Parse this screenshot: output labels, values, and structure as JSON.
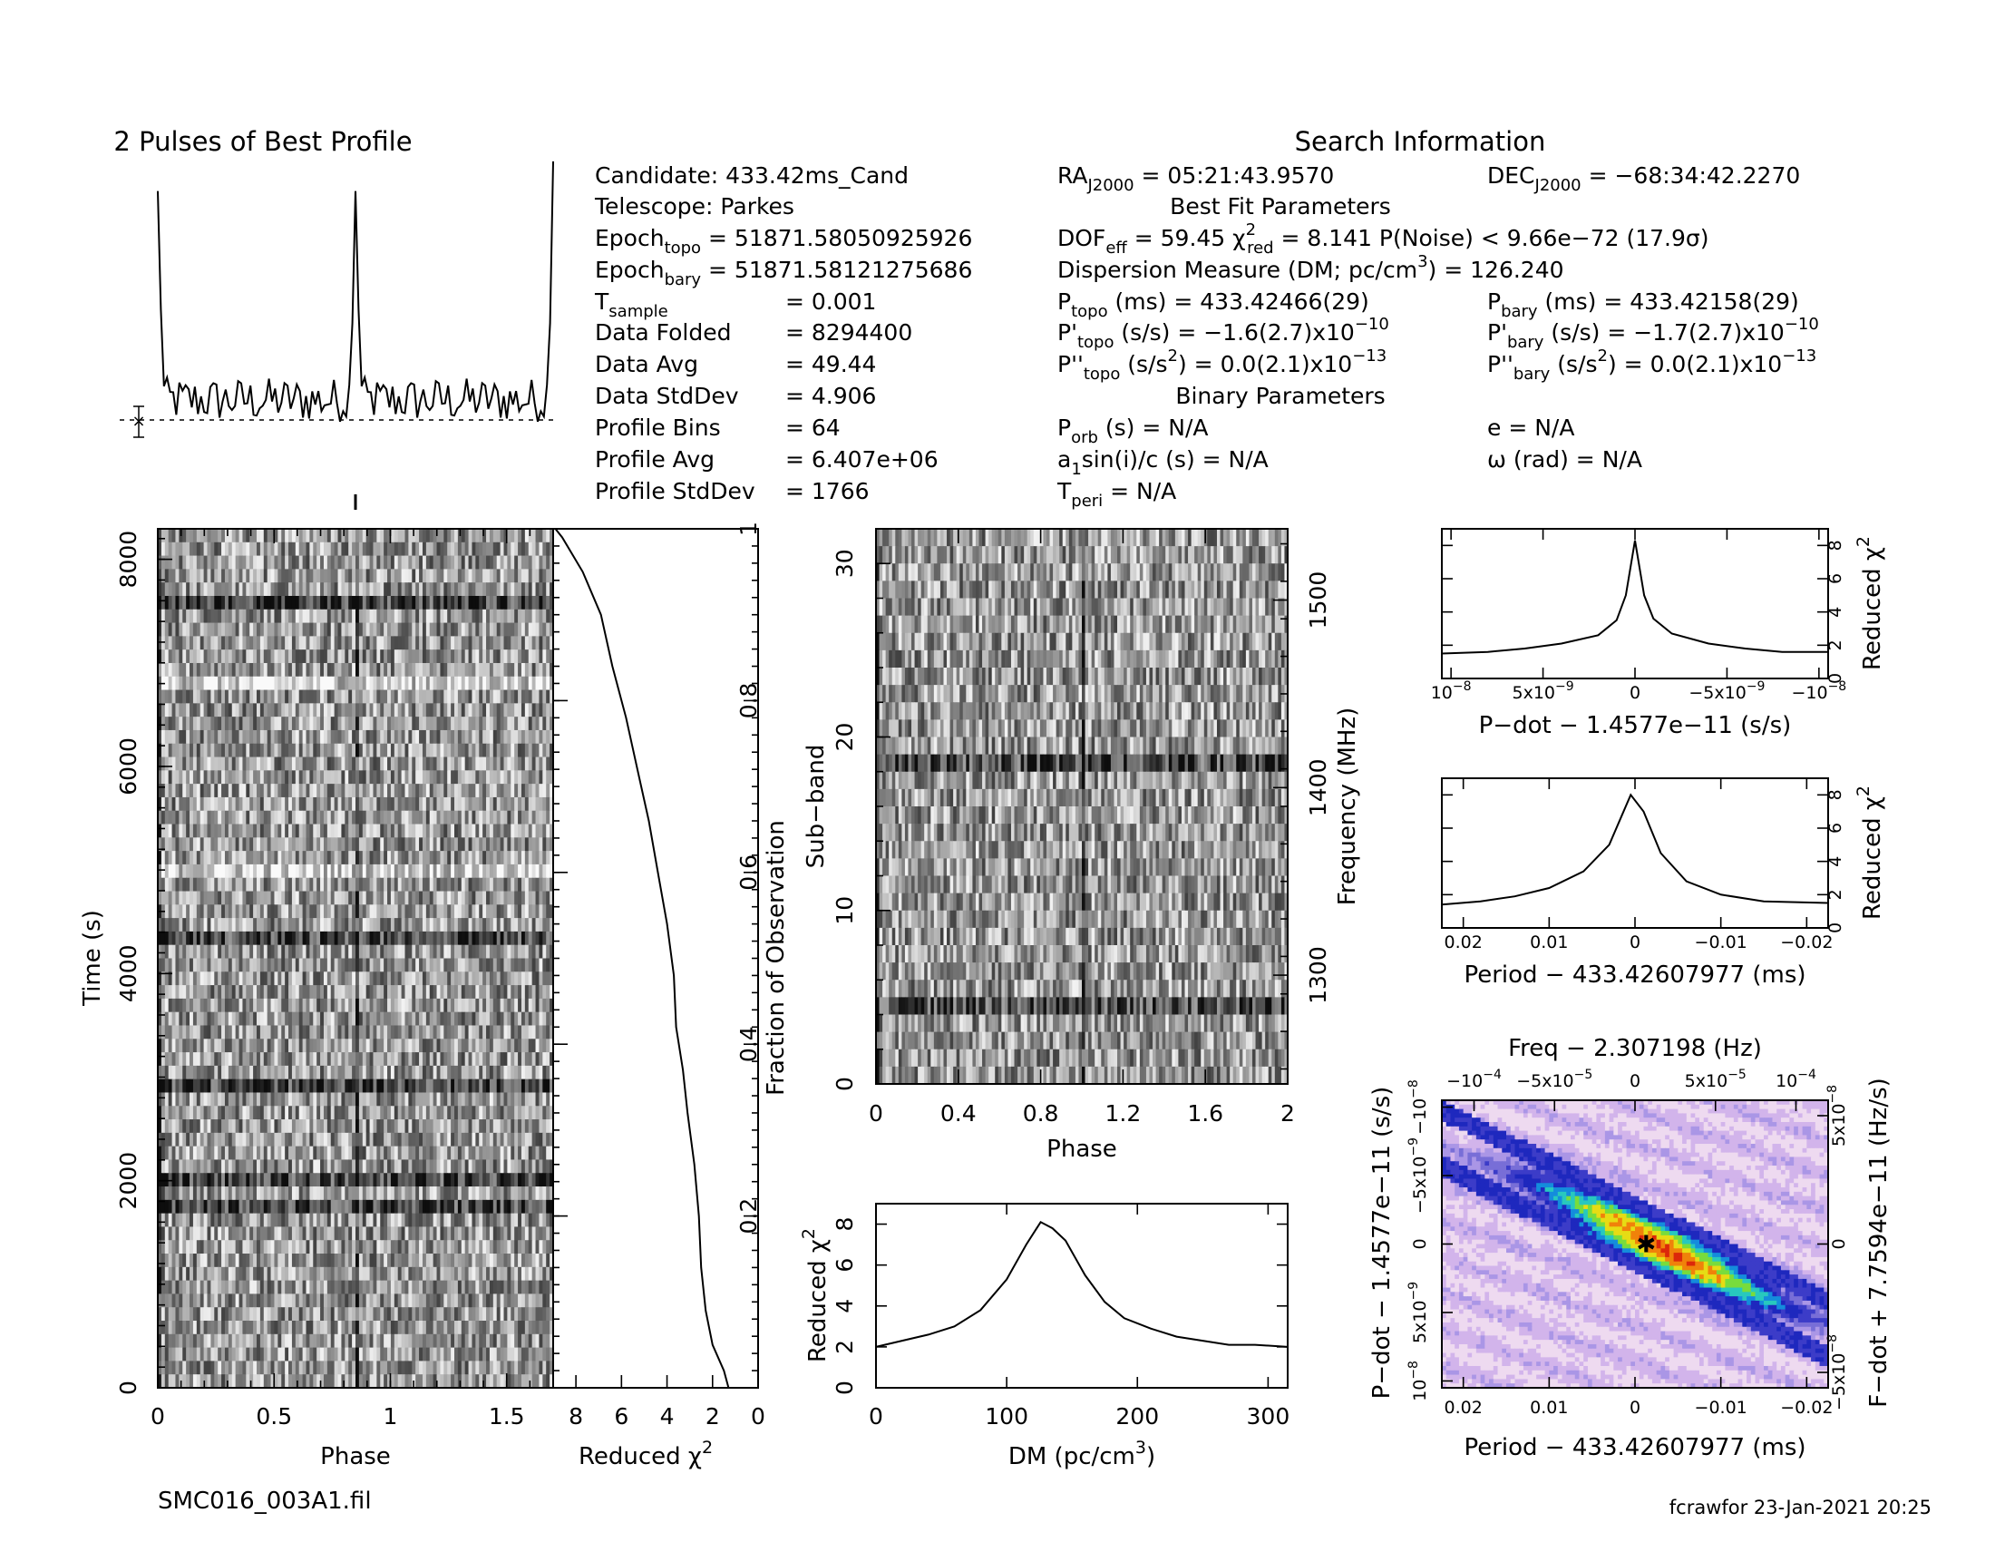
{
  "filename": "SMC016_003A1.fil",
  "footer": "fcrawfor 23-Jan-2021 20:25",
  "profile_title": "2 Pulses of Best Profile",
  "search_title": "Search Information",
  "best_fit_title": "Best Fit Parameters",
  "binary_title": "Binary Parameters",
  "info": {
    "candidate": "Candidate:  433.42ms_Cand",
    "telescope": "Telescope:  Parkes",
    "epoch_topo": "Epoch",
    "epoch_topo_sub": "topo",
    "epoch_topo_val": " = 51871.58050925926",
    "epoch_bary": "Epoch",
    "epoch_bary_sub": "bary",
    "epoch_bary_val": " = 51871.58121275686",
    "tsample": "T",
    "tsample_sub": "sample",
    "tsample_val": "=   0.001",
    "data_folded": "Data Folded",
    "data_folded_val": "=   8294400",
    "data_avg": "Data Avg",
    "data_avg_val": "=   49.44",
    "data_std": "Data StdDev",
    "data_std_val": "=   4.906",
    "profile_bins": "Profile Bins",
    "profile_bins_val": "=   64",
    "profile_avg": "Profile Avg",
    "profile_avg_val": "=   6.407e+06",
    "profile_std": "Profile StdDev",
    "profile_std_val": "=   1766",
    "ra": "RA",
    "ra_sub": "J2000",
    "ra_val": " = 05:21:43.9570",
    "dec": "DEC",
    "dec_sub": "J2000",
    "dec_val": " = −68:34:42.2270",
    "dof": "DOF",
    "dof_sub": "eff",
    "dof_val": " = 59.45  χ",
    "chi_sup": "2",
    "chi_sub": "red",
    "chi_val": " = 8.141  P(Noise) < 9.66e−72  (17.9σ)",
    "dm": "Dispersion Measure (DM; pc/cm",
    "dm_sup": "3",
    "dm_val": ") = 126.240",
    "ptopo": "P",
    "ptopo_sub": "topo",
    "ptopo_val": " (ms)  =  433.42466(29)",
    "pbary": "P",
    "pbary_sub": "bary",
    "pbary_val": " (ms)  =  433.42158(29)",
    "pdtopo": "P'",
    "pdtopo_sub": "topo",
    "pdtopo_val": " (s/s) = −1.6(2.7)x10",
    "pdtopo_exp": "−10",
    "pdbary": "P'",
    "pdbary_sub": "bary",
    "pdbary_val": " (s/s) = −1.7(2.7)x10",
    "pdbary_exp": "−10",
    "pddtopo": "P''",
    "pddtopo_sub": "topo",
    "pddtopo_val": " (s/s",
    "pddtopo_sup2": "2",
    "pddtopo_val2": ") = 0.0(2.1)x10",
    "pddtopo_exp": "−13",
    "pddbary": "P''",
    "pddbary_sub": "bary",
    "pddbary_val": " (s/s",
    "pddbary_sup2": "2",
    "pddbary_val2": ") = 0.0(2.1)x10",
    "pddbary_exp": "−13",
    "porb": "P",
    "porb_sub": "orb",
    "porb_val": " (s) = N/A",
    "e_val": "e = N/A",
    "asini": "a",
    "asini_sub": "1",
    "asini_val": "sin(i)/c (s) = N/A",
    "omega_val": "ω (rad) = N/A",
    "tperi": "T",
    "tperi_sub": "peri",
    "tperi_val": " = N/A"
  },
  "chart_data": [
    {
      "type": "line",
      "id": "pulse_profile",
      "title": "2 Pulses of Best Profile",
      "x": "phase 0–2 (2 pulses, 64 bins each)",
      "peak_phase": [
        0.0,
        1.0
      ],
      "baseline_level": 0.5
    },
    {
      "type": "heatmap",
      "id": "time_phase",
      "xlabel": "Phase",
      "ylabel": "Time (s)",
      "xlim": [
        0,
        2
      ],
      "ylim": [
        0,
        8294.4
      ],
      "xticks": [
        "0",
        "0.5",
        "1",
        "1.5"
      ],
      "yticks": [
        "0",
        "2000",
        "4000",
        "6000",
        "8000"
      ],
      "colormap": "gray"
    },
    {
      "type": "line",
      "id": "time_chi2",
      "xlabel": "Reduced χ",
      "xlabel_sup": "2",
      "ylabel": "Fraction of Observation",
      "xlim": [
        9,
        0
      ],
      "ylim": [
        0,
        1
      ],
      "xticks": [
        "8",
        "6",
        "4",
        "2",
        "0"
      ],
      "yticks": [
        "0.2",
        "0.4",
        "0.6",
        "0.8",
        "1"
      ],
      "points": [
        [
          1.3,
          0.0
        ],
        [
          1.5,
          0.02
        ],
        [
          2.0,
          0.05
        ],
        [
          2.3,
          0.09
        ],
        [
          2.5,
          0.14
        ],
        [
          2.6,
          0.2
        ],
        [
          2.8,
          0.26
        ],
        [
          3.1,
          0.32
        ],
        [
          3.3,
          0.37
        ],
        [
          3.6,
          0.42
        ],
        [
          3.7,
          0.48
        ],
        [
          4.0,
          0.54
        ],
        [
          4.4,
          0.6
        ],
        [
          4.8,
          0.66
        ],
        [
          5.3,
          0.72
        ],
        [
          5.8,
          0.78
        ],
        [
          6.4,
          0.84
        ],
        [
          6.9,
          0.9
        ],
        [
          7.7,
          0.95
        ],
        [
          8.6,
          0.99
        ],
        [
          8.9,
          1.0
        ]
      ]
    },
    {
      "type": "heatmap",
      "id": "subband_phase",
      "xlabel": "Phase",
      "ylabel": "Sub−band",
      "ylabel2": "Frequency (MHz)",
      "xlim": [
        0,
        2
      ],
      "ylim": [
        0,
        32
      ],
      "xticks": [
        "0",
        "0.4",
        "0.8",
        "1.2",
        "1.6",
        "2"
      ],
      "yticks": [
        "0",
        "10",
        "20",
        "30"
      ],
      "y2ticks": [
        "1300",
        "1400",
        "1500"
      ],
      "colormap": "gray"
    },
    {
      "type": "line",
      "id": "dm_chi2",
      "xlabel": "DM (pc/cm",
      "xlabel_sup": "3",
      "xlabel_end": ")",
      "ylabel": "Reduced χ",
      "ylabel_sup": "2",
      "xlim": [
        0,
        315
      ],
      "ylim": [
        0,
        9
      ],
      "xticks": [
        "0",
        "100",
        "200",
        "300"
      ],
      "yticks": [
        "0",
        "2",
        "4",
        "6",
        "8"
      ],
      "points": [
        [
          0,
          2.0
        ],
        [
          20,
          2.3
        ],
        [
          40,
          2.6
        ],
        [
          60,
          3.0
        ],
        [
          80,
          3.8
        ],
        [
          100,
          5.3
        ],
        [
          115,
          7.0
        ],
        [
          126,
          8.1
        ],
        [
          135,
          7.8
        ],
        [
          145,
          7.2
        ],
        [
          160,
          5.5
        ],
        [
          175,
          4.2
        ],
        [
          190,
          3.4
        ],
        [
          210,
          2.9
        ],
        [
          230,
          2.5
        ],
        [
          250,
          2.3
        ],
        [
          270,
          2.1
        ],
        [
          290,
          2.1
        ],
        [
          315,
          2.0
        ]
      ]
    },
    {
      "type": "line",
      "id": "pdot_chi2",
      "xlabel": "P−dot − 1.4577e−11 (s/s)",
      "ylabel": "Reduced χ",
      "ylabel_sup": "2",
      "xlim": [
        1.05e-08,
        -1.05e-08
      ],
      "ylim": [
        0,
        9
      ],
      "xticks": [
        "10",
        "5x10",
        "0",
        "−5x10",
        "−10"
      ],
      "xticks_exp": [
        "−8",
        "−9",
        "",
        "−9",
        "−8"
      ],
      "yticks": [
        "0",
        "2",
        "4",
        "6",
        "8"
      ],
      "points": [
        [
          1.05e-08,
          1.5
        ],
        [
          8e-09,
          1.6
        ],
        [
          6e-09,
          1.8
        ],
        [
          4e-09,
          2.1
        ],
        [
          2e-09,
          2.6
        ],
        [
          1e-09,
          3.5
        ],
        [
          5e-10,
          5.0
        ],
        [
          0,
          8.3
        ],
        [
          -5e-10,
          5.0
        ],
        [
          -1e-09,
          3.6
        ],
        [
          -2e-09,
          2.7
        ],
        [
          -4e-09,
          2.1
        ],
        [
          -6e-09,
          1.8
        ],
        [
          -8e-09,
          1.6
        ],
        [
          -1.05e-08,
          1.6
        ]
      ]
    },
    {
      "type": "line",
      "id": "period_chi2",
      "xlabel": "Period − 433.42607977 (ms)",
      "ylabel": "Reduced χ",
      "ylabel_sup": "2",
      "xlim": [
        0.0225,
        -0.0225
      ],
      "ylim": [
        0,
        9
      ],
      "xticks": [
        "0.02",
        "0.01",
        "0",
        "−0.01",
        "−0.02"
      ],
      "yticks": [
        "0",
        "2",
        "4",
        "6",
        "8"
      ],
      "points": [
        [
          0.0225,
          1.4
        ],
        [
          0.018,
          1.6
        ],
        [
          0.014,
          1.9
        ],
        [
          0.01,
          2.4
        ],
        [
          0.006,
          3.4
        ],
        [
          0.003,
          5.0
        ],
        [
          0.0015,
          6.8
        ],
        [
          0.0005,
          8.0
        ],
        [
          -0.001,
          7.0
        ],
        [
          -0.003,
          4.5
        ],
        [
          -0.006,
          2.8
        ],
        [
          -0.01,
          2.0
        ],
        [
          -0.015,
          1.6
        ],
        [
          -0.0225,
          1.5
        ]
      ]
    },
    {
      "type": "heatmap",
      "id": "period_pdot",
      "title": "Freq − 2.307198 (Hz)",
      "xlabel": "Period − 433.42607977 (ms)",
      "ylabel": "P−dot − 1.4577e−11 (s/s)",
      "ylabel2": "F−dot + 7.7594e−11 (Hz/s)",
      "xlim": [
        0.0225,
        -0.0225
      ],
      "ylim": [
        1.05e-08,
        -1.05e-08
      ],
      "xticks": [
        "0.02",
        "0.01",
        "0",
        "−0.01",
        "−0.02"
      ],
      "topticks": [
        "−10",
        "−5x10",
        "0",
        "5x10",
        "10"
      ],
      "topticks_exp": [
        "−4",
        "−5",
        "",
        "−5",
        "−4"
      ],
      "yticks": [
        "10",
        "5x10",
        "0",
        "−5x10",
        "−10"
      ],
      "yticks_exp": [
        "−8",
        "−9",
        "",
        "−9",
        "−8"
      ],
      "y2ticks": [
        "5x10",
        "0",
        "−5x10"
      ],
      "y2ticks_exp": [
        "−8",
        "",
        "−8"
      ],
      "best": [
        -0.0013,
        -0.0
      ]
    }
  ]
}
